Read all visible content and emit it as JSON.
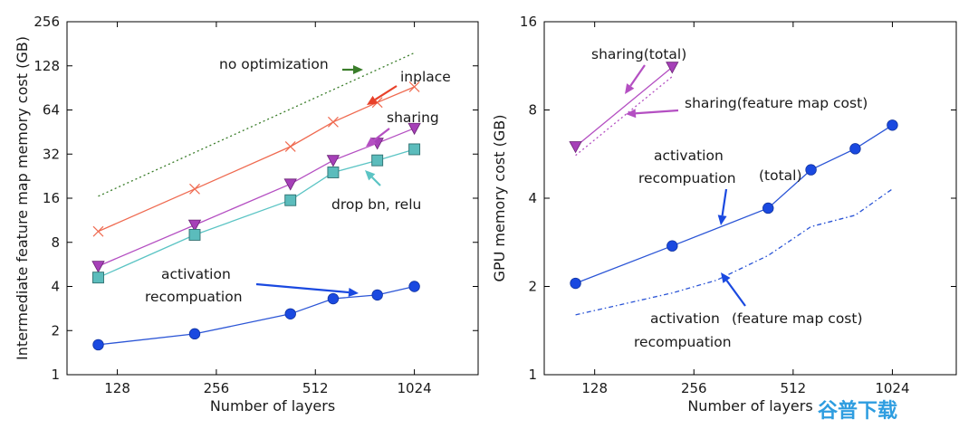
{
  "watermark": "谷普下载",
  "chart_data": [
    {
      "type": "line",
      "scale": "log2",
      "xlabel": "Number of layers",
      "ylabel": "Intermediate feature map memory cost (GB)",
      "xlim": [
        90,
        1600
      ],
      "ylim": [
        1,
        256
      ],
      "xticks": [
        128,
        256,
        512,
        1024
      ],
      "xtick_labels": [
        "128",
        "256",
        "512",
        "1024"
      ],
      "yticks": [
        1,
        2,
        4,
        8,
        16,
        32,
        64,
        128,
        256
      ],
      "ytick_labels": [
        "1",
        "2",
        "4",
        "8",
        "16",
        "32",
        "64",
        "128",
        "256"
      ],
      "series": [
        {
          "name": "no optimization",
          "color": "#3a7d2a",
          "style": "dotted",
          "marker": "none",
          "x": [
            112,
            1024
          ],
          "y": [
            16.5,
            157
          ]
        },
        {
          "name": "inplace",
          "color": "#ef6a50",
          "style": "solid",
          "marker": "x",
          "x": [
            112,
            220,
            430,
            580,
            790,
            1024
          ],
          "y": [
            9.5,
            18.5,
            36,
            53,
            72,
            92
          ]
        },
        {
          "name": "sharing",
          "color": "#b44fc2",
          "style": "solid",
          "marker": "triangle",
          "x": [
            112,
            220,
            430,
            580,
            790,
            1024
          ],
          "y": [
            5.5,
            10.5,
            20,
            29,
            38,
            48
          ]
        },
        {
          "name": "drop bn, relu",
          "color": "#5bc4c4",
          "style": "solid",
          "marker": "square",
          "x": [
            112,
            220,
            430,
            580,
            790,
            1024
          ],
          "y": [
            4.6,
            9,
            15.5,
            24,
            29,
            34.5
          ]
        },
        {
          "name": "activation recompuation",
          "color": "#2b55d6",
          "style": "solid",
          "marker": "circle",
          "x": [
            112,
            220,
            430,
            580,
            790,
            1024
          ],
          "y": [
            1.6,
            1.9,
            2.6,
            3.3,
            3.5,
            4.0
          ]
        }
      ],
      "annotations": [
        {
          "id": "no-optimization",
          "text": "no optimization"
        },
        {
          "id": "inplace",
          "text": "inplace"
        },
        {
          "id": "sharing",
          "text": "sharing"
        },
        {
          "id": "drop-bn-relu",
          "text": "drop bn, relu"
        },
        {
          "id": "activation",
          "text": "activation"
        },
        {
          "id": "recompuation",
          "text": "recompuation"
        }
      ]
    },
    {
      "type": "line",
      "scale": "log2",
      "xlabel": "Number of layers",
      "ylabel": "GPU memory cost (GB)",
      "xlim": [
        90,
        1600
      ],
      "ylim": [
        1,
        16
      ],
      "xticks": [
        128,
        256,
        512,
        1024
      ],
      "xtick_labels": [
        "128",
        "256",
        "512",
        "1024"
      ],
      "yticks": [
        1,
        2,
        4,
        8,
        16
      ],
      "ytick_labels": [
        "1",
        "2",
        "4",
        "8",
        "16"
      ],
      "series": [
        {
          "name": "sharing(total)",
          "color": "#b44fc2",
          "style": "solid",
          "marker": "triangle",
          "x": [
            112,
            220
          ],
          "y": [
            6.0,
            11.2
          ]
        },
        {
          "name": "sharing(feature map cost)",
          "color": "#b44fc2",
          "style": "dotted",
          "marker": "none",
          "x": [
            112,
            220
          ],
          "y": [
            5.6,
            10.4
          ]
        },
        {
          "name": "activation recompuation (total)",
          "color": "#2b55d6",
          "style": "solid",
          "marker": "circle",
          "x": [
            112,
            220,
            430,
            580,
            790,
            1024
          ],
          "y": [
            2.05,
            2.75,
            3.7,
            5.0,
            5.9,
            7.1
          ]
        },
        {
          "name": "activation recompuation (feature map cost)",
          "color": "#2b55d6",
          "style": "dashdot",
          "marker": "none",
          "x": [
            112,
            220,
            300,
            430,
            580,
            790,
            1024
          ],
          "y": [
            1.6,
            1.9,
            2.1,
            2.55,
            3.2,
            3.5,
            4.3
          ]
        }
      ],
      "annotations": [
        {
          "id": "sharing-total",
          "text": "sharing(total)"
        },
        {
          "id": "sharing-fm",
          "text": "sharing(feature map cost)"
        },
        {
          "id": "activation",
          "text": "activation"
        },
        {
          "id": "recompuation",
          "text": "recompuation"
        },
        {
          "id": "total",
          "text": "(total)"
        },
        {
          "id": "activation-2",
          "text": "activation"
        },
        {
          "id": "fm-cost",
          "text": "(feature map cost)"
        },
        {
          "id": "recompuation-2",
          "text": "recompuation"
        }
      ]
    }
  ]
}
